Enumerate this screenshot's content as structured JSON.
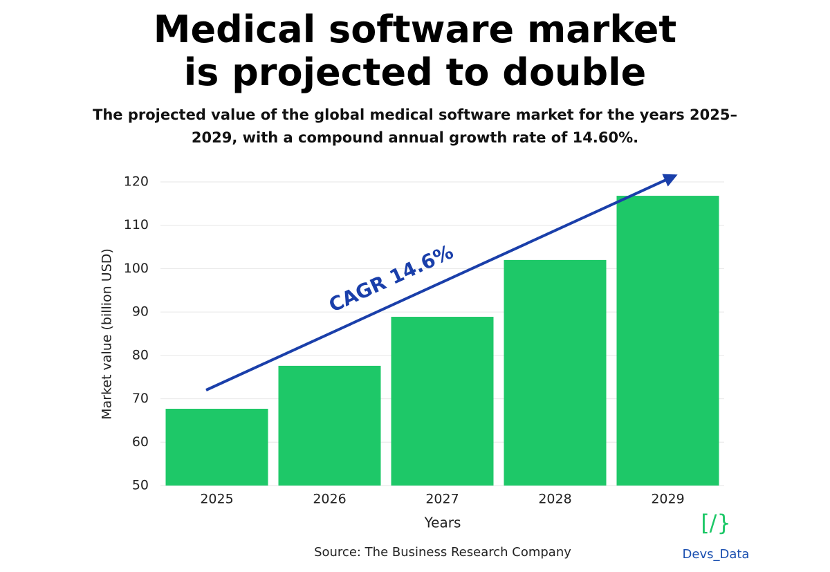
{
  "chart_data": {
    "type": "bar",
    "title": "Medical software market is projected to double",
    "subtitle": "The projected value of the global medical software market for the years 2025–2029, with a compound annual growth rate of 14.60%.",
    "x_label": "Years",
    "y_label": "Market value (billion USD)",
    "annotation": "CAGR 14.6%",
    "source": "Source: The Business Research Company",
    "logo_icon": "[/}",
    "logo_text": "Devs_Data",
    "categories": [
      "2025",
      "2026",
      "2027",
      "2028",
      "2029"
    ],
    "values": [
      67.7,
      77.6,
      88.9,
      102,
      116.8
    ],
    "color": "#1ec868",
    "ylim": [
      50,
      120
    ],
    "yticks": [
      50,
      60,
      70,
      80,
      90,
      100,
      110,
      120
    ],
    "grid": true
  }
}
